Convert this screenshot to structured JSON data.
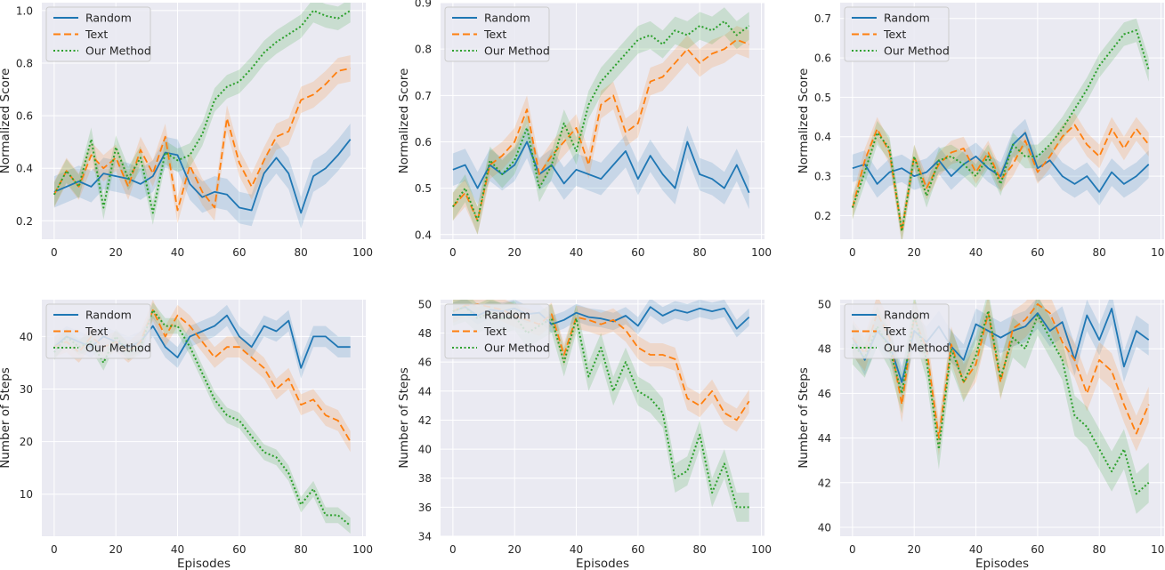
{
  "colors": {
    "random": "#1f77b4",
    "text": "#ff7f0e",
    "ours": "#2ca02c",
    "background": "#eaeaf2"
  },
  "chart_data": [
    {
      "type": "line",
      "title": "",
      "xlabel": "",
      "ylabel": "Normalized Score",
      "xlim": [
        -4,
        101
      ],
      "ylim": [
        0.13,
        1.03
      ],
      "xticks": [
        0,
        20,
        40,
        60,
        80,
        100
      ],
      "yticks": [
        0.2,
        0.4,
        0.6,
        0.8,
        1.0
      ],
      "ytick_labels": [
        "0.2",
        "0.4",
        "0.6",
        "0.8",
        "1.0"
      ],
      "legend": "top-left",
      "series": [
        {
          "name": "Random",
          "style": "solid",
          "x_step": 4,
          "band": 0.06,
          "values": [
            0.31,
            0.33,
            0.35,
            0.33,
            0.38,
            0.37,
            0.36,
            0.34,
            0.37,
            0.46,
            0.45,
            0.34,
            0.29,
            0.31,
            0.3,
            0.25,
            0.24,
            0.38,
            0.44,
            0.38,
            0.23,
            0.37,
            0.4,
            0.45,
            0.51
          ]
        },
        {
          "name": "Text",
          "style": "dashed",
          "x_step": 4,
          "band": 0.05,
          "values": [
            0.3,
            0.39,
            0.33,
            0.45,
            0.4,
            0.44,
            0.33,
            0.47,
            0.38,
            0.52,
            0.24,
            0.41,
            0.31,
            0.25,
            0.59,
            0.42,
            0.33,
            0.43,
            0.52,
            0.54,
            0.66,
            0.68,
            0.72,
            0.77,
            0.78
          ]
        },
        {
          "name": "Our Method",
          "style": "dotted",
          "x_step": 4,
          "band": 0.045,
          "values": [
            0.3,
            0.39,
            0.33,
            0.51,
            0.25,
            0.48,
            0.36,
            0.44,
            0.23,
            0.46,
            0.43,
            0.45,
            0.53,
            0.66,
            0.71,
            0.73,
            0.78,
            0.84,
            0.88,
            0.91,
            0.94,
            1.0,
            0.98,
            0.97,
            1.0
          ]
        }
      ]
    },
    {
      "type": "line",
      "title": "",
      "xlabel": "",
      "ylabel": "Normalized Score",
      "xlim": [
        -4,
        101
      ],
      "ylim": [
        0.39,
        0.9
      ],
      "xticks": [
        0,
        20,
        40,
        60,
        80,
        100
      ],
      "yticks": [
        0.4,
        0.5,
        0.6,
        0.7,
        0.8,
        0.9
      ],
      "ytick_labels": [
        "0.4",
        "0.5",
        "0.6",
        "0.7",
        "0.8",
        "0.9"
      ],
      "legend": "top-left",
      "series": [
        {
          "name": "Random",
          "style": "solid",
          "x_step": 4,
          "band": 0.035,
          "values": [
            0.54,
            0.55,
            0.5,
            0.55,
            0.53,
            0.55,
            0.6,
            0.53,
            0.55,
            0.51,
            0.54,
            0.53,
            0.52,
            0.55,
            0.58,
            0.52,
            0.57,
            0.53,
            0.5,
            0.6,
            0.53,
            0.52,
            0.5,
            0.55,
            0.49
          ]
        },
        {
          "name": "Text",
          "style": "dashed",
          "x_step": 4,
          "band": 0.03,
          "values": [
            0.46,
            0.49,
            0.43,
            0.55,
            0.57,
            0.6,
            0.67,
            0.53,
            0.57,
            0.6,
            0.63,
            0.55,
            0.68,
            0.7,
            0.62,
            0.64,
            0.73,
            0.74,
            0.77,
            0.8,
            0.77,
            0.79,
            0.8,
            0.82,
            0.81
          ]
        },
        {
          "name": "Our Method",
          "style": "dotted",
          "x_step": 4,
          "band": 0.03,
          "values": [
            0.46,
            0.5,
            0.43,
            0.56,
            0.53,
            0.56,
            0.63,
            0.5,
            0.55,
            0.64,
            0.58,
            0.68,
            0.73,
            0.76,
            0.79,
            0.82,
            0.83,
            0.81,
            0.84,
            0.83,
            0.85,
            0.84,
            0.86,
            0.83,
            0.85
          ]
        }
      ]
    },
    {
      "type": "line",
      "title": "",
      "xlabel": "",
      "ylabel": "Normalized Score",
      "xlim": [
        -4,
        101
      ],
      "ylim": [
        0.14,
        0.74
      ],
      "xticks": [
        0,
        20,
        40,
        60,
        80,
        100
      ],
      "yticks": [
        0.2,
        0.3,
        0.4,
        0.5,
        0.6,
        0.7
      ],
      "ytick_labels": [
        "0.2",
        "0.3",
        "0.4",
        "0.5",
        "0.6",
        "0.7"
      ],
      "legend": "top-left",
      "series": [
        {
          "name": "Random",
          "style": "solid",
          "x_step": 4,
          "band": 0.035,
          "values": [
            0.32,
            0.33,
            0.28,
            0.31,
            0.32,
            0.3,
            0.31,
            0.34,
            0.3,
            0.33,
            0.35,
            0.32,
            0.3,
            0.38,
            0.41,
            0.32,
            0.34,
            0.3,
            0.28,
            0.3,
            0.26,
            0.31,
            0.28,
            0.3,
            0.33
          ]
        },
        {
          "name": "Text",
          "style": "dashed",
          "x_step": 4,
          "band": 0.03,
          "values": [
            0.22,
            0.34,
            0.42,
            0.36,
            0.16,
            0.35,
            0.27,
            0.33,
            0.36,
            0.37,
            0.31,
            0.36,
            0.29,
            0.33,
            0.39,
            0.31,
            0.35,
            0.4,
            0.43,
            0.38,
            0.35,
            0.42,
            0.37,
            0.42,
            0.38
          ]
        },
        {
          "name": "Our Method",
          "style": "dotted",
          "x_step": 4,
          "band": 0.03,
          "values": [
            0.22,
            0.31,
            0.41,
            0.37,
            0.16,
            0.35,
            0.25,
            0.34,
            0.35,
            0.33,
            0.3,
            0.35,
            0.28,
            0.38,
            0.35,
            0.35,
            0.38,
            0.42,
            0.47,
            0.52,
            0.58,
            0.62,
            0.66,
            0.67,
            0.57
          ]
        }
      ]
    },
    {
      "type": "line",
      "title": "",
      "xlabel": "Episodes",
      "ylabel": "Number of Steps",
      "xlim": [
        -4,
        101
      ],
      "ylim": [
        2,
        47
      ],
      "xticks": [
        0,
        20,
        40,
        60,
        80,
        100
      ],
      "yticks": [
        10,
        20,
        30,
        40
      ],
      "ytick_labels": [
        "10",
        "20",
        "30",
        "40"
      ],
      "legend": "top-left",
      "series": [
        {
          "name": "Random",
          "style": "solid",
          "x_step": 4,
          "band": 2.0,
          "values": [
            38,
            40,
            39,
            38,
            40,
            39,
            38,
            39,
            42,
            38,
            36,
            40,
            41,
            42,
            44,
            40,
            38,
            42,
            41,
            43,
            34,
            40,
            40,
            38,
            38
          ]
        },
        {
          "name": "Text",
          "style": "dashed",
          "x_step": 4,
          "band": 2.0,
          "values": [
            38,
            39,
            37,
            40,
            38,
            39,
            37,
            39,
            45,
            40,
            44,
            42,
            39,
            36,
            38,
            38,
            36,
            34,
            30,
            32,
            27,
            28,
            25,
            24,
            20
          ]
        },
        {
          "name": "Our Method",
          "style": "dotted",
          "x_step": 4,
          "band": 1.5,
          "values": [
            37,
            40,
            38,
            39,
            35,
            40,
            37,
            38,
            45,
            42,
            42,
            38,
            33,
            28,
            25,
            24,
            21,
            18,
            17,
            14,
            8,
            11,
            6,
            6,
            4
          ]
        }
      ]
    },
    {
      "type": "line",
      "title": "",
      "xlabel": "Episodes",
      "ylabel": "Number of Steps",
      "xlim": [
        -4,
        101
      ],
      "ylim": [
        34,
        50.3
      ],
      "xticks": [
        0,
        20,
        40,
        60,
        80,
        100
      ],
      "yticks": [
        34,
        36,
        38,
        40,
        42,
        44,
        46,
        48,
        50
      ],
      "ytick_labels": [
        "34",
        "36",
        "38",
        "40",
        "42",
        "44",
        "46",
        "48",
        "50"
      ],
      "legend": "top-left",
      "series": [
        {
          "name": "Random",
          "style": "solid",
          "x_step": 4,
          "band": 0.6,
          "values": [
            49.5,
            49.8,
            49.2,
            49.6,
            49.5,
            49.7,
            49.3,
            49.4,
            48.6,
            48.9,
            49.4,
            49.1,
            49,
            48.8,
            49.2,
            48.5,
            49.8,
            49.2,
            49.6,
            49.4,
            49.7,
            49.5,
            49.7,
            48.3,
            49.1
          ]
        },
        {
          "name": "Text",
          "style": "dashed",
          "x_step": 4,
          "band": 0.8,
          "values": [
            49.5,
            49.9,
            50,
            49.8,
            49.6,
            49.2,
            48.9,
            48.6,
            49.3,
            46.5,
            49.1,
            48.9,
            48.6,
            48.9,
            48.2,
            47,
            46.5,
            46.5,
            46.2,
            43.5,
            43,
            44,
            42.5,
            42,
            43.3
          ]
        },
        {
          "name": "Our Method",
          "style": "dotted",
          "x_step": 4,
          "band": 1.0,
          "values": [
            49.5,
            49.8,
            49,
            49.4,
            49,
            49.2,
            48,
            48.5,
            49,
            46,
            49,
            45,
            47,
            44,
            46,
            44,
            43.5,
            42.5,
            38,
            38.5,
            41,
            37,
            39,
            36,
            36
          ]
        }
      ]
    },
    {
      "type": "line",
      "title": "",
      "xlabel": "Episodes",
      "ylabel": "Number of Steps",
      "xlim": [
        -4,
        101
      ],
      "ylim": [
        39.6,
        50.2
      ],
      "xticks": [
        0,
        20,
        40,
        60,
        80,
        100
      ],
      "yticks": [
        40,
        42,
        44,
        46,
        48,
        50
      ],
      "ytick_labels": [
        "40",
        "42",
        "44",
        "46",
        "48",
        "50"
      ],
      "legend": "top-left",
      "series": [
        {
          "name": "Random",
          "style": "solid",
          "x_step": 4,
          "band": 0.7,
          "values": [
            48.5,
            47.5,
            48.8,
            48.2,
            46.5,
            48.8,
            48.3,
            49,
            48.1,
            47.5,
            49.1,
            48.8,
            48.5,
            48.8,
            49,
            49.6,
            48.8,
            49.2,
            47.5,
            49.5,
            48.4,
            49.8,
            47.2,
            48.8,
            48.4
          ]
        },
        {
          "name": "Text",
          "style": "dashed",
          "x_step": 4,
          "band": 0.8,
          "values": [
            48.5,
            47.8,
            49.6,
            48.5,
            45.5,
            49.4,
            48,
            44,
            48.2,
            46.5,
            47.3,
            49.6,
            46.5,
            48.9,
            49.3,
            50,
            49.6,
            48.3,
            47.5,
            46,
            47.5,
            47,
            45.5,
            44.2,
            45.5
          ]
        },
        {
          "name": "Our Method",
          "style": "dotted",
          "x_step": 4,
          "band": 0.9,
          "values": [
            48.2,
            47.6,
            49,
            48,
            46,
            49.5,
            47.5,
            43.5,
            48,
            46.5,
            47.7,
            49.7,
            46.7,
            48.5,
            48,
            49.5,
            48.5,
            47.5,
            45,
            44.5,
            43.5,
            42.5,
            43.5,
            41.5,
            42
          ]
        }
      ]
    }
  ]
}
